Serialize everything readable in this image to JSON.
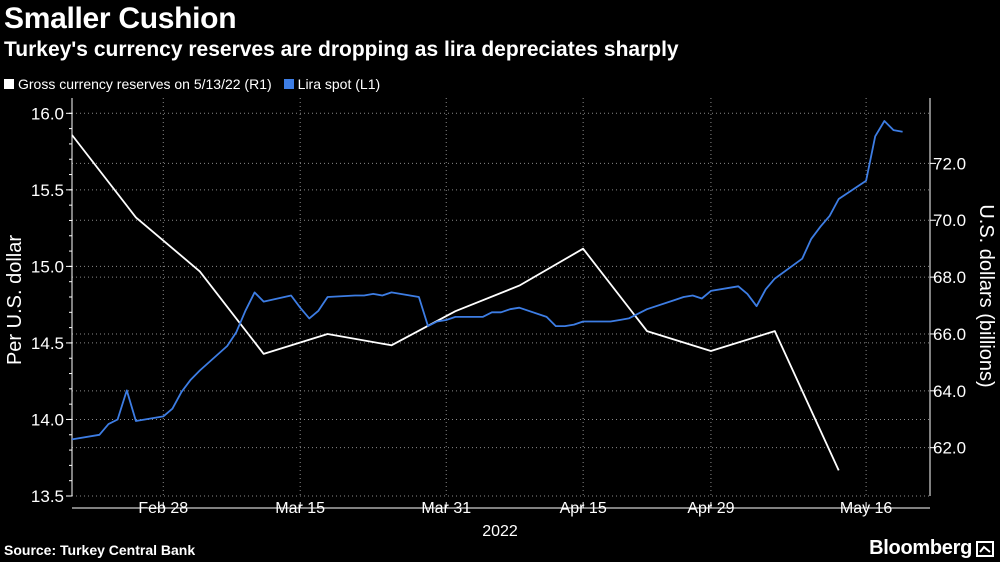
{
  "header": {
    "title": "Smaller Cushion",
    "subtitle": "Turkey's currency reserves are dropping as lira depreciates sharply"
  },
  "footer": {
    "source": "Source: Turkey Central Bank",
    "brand": "Bloomberg"
  },
  "colors": {
    "background": "#000000",
    "reserves_line": "#ffffff",
    "lira_line": "#3d7de4",
    "grid": "#8a8a8a"
  },
  "icons": {
    "brand_mark": "trading-terminal-icon"
  },
  "chart_data": {
    "type": "line",
    "legend": [
      {
        "label": "Gross currency reserves on 5/13/22 (R1)",
        "color": "#ffffff"
      },
      {
        "label": "Lira spot (L1)",
        "color": "#3d7de4"
      }
    ],
    "legend_position": "top-left",
    "grid": true,
    "x_axis": {
      "tick_labels": [
        "Feb 28",
        "Mar 15",
        "Mar 31",
        "Apr 15",
        "Apr 29",
        "May 16"
      ],
      "tick_dates": [
        "2022-02-28",
        "2022-03-15",
        "2022-03-31",
        "2022-04-15",
        "2022-04-29",
        "2022-05-16"
      ],
      "year_label": "2022",
      "range": [
        "2022-02-18",
        "2022-05-23"
      ]
    },
    "y_left": {
      "label": "Per U.S. dollar",
      "range": [
        13.5,
        16.1
      ],
      "tick_labels": [
        "16.0",
        "15.5",
        "15.0",
        "14.5",
        "14.0",
        "13.5"
      ],
      "ticks": [
        16.0,
        15.5,
        15.0,
        14.5,
        14.0,
        13.5
      ]
    },
    "y_right": {
      "label": "U.S. dollars (billions)",
      "range": [
        60.3,
        74.3
      ],
      "tick_labels": [
        "72.0",
        "70.0",
        "68.0",
        "66.0",
        "64.0",
        "62.0"
      ],
      "ticks": [
        72.0,
        70.0,
        68.0,
        66.0,
        64.0,
        62.0
      ]
    },
    "series": [
      {
        "name": "Gross currency reserves on 5/13/22 (R1)",
        "axis": "right",
        "color": "#ffffff",
        "points": [
          [
            "2022-02-18",
            73.0
          ],
          [
            "2022-02-25",
            70.1
          ],
          [
            "2022-03-04",
            68.2
          ],
          [
            "2022-03-11",
            65.3
          ],
          [
            "2022-03-18",
            66.0
          ],
          [
            "2022-03-25",
            65.6
          ],
          [
            "2022-04-01",
            66.8
          ],
          [
            "2022-04-08",
            67.7
          ],
          [
            "2022-04-15",
            69.0
          ],
          [
            "2022-04-22",
            66.1
          ],
          [
            "2022-04-29",
            65.4
          ],
          [
            "2022-05-06",
            66.1
          ],
          [
            "2022-05-13",
            61.2
          ]
        ]
      },
      {
        "name": "Lira spot (L1)",
        "axis": "left",
        "color": "#3d7de4",
        "points": [
          [
            "2022-02-18",
            13.87
          ],
          [
            "2022-02-21",
            13.9
          ],
          [
            "2022-02-22",
            13.97
          ],
          [
            "2022-02-23",
            14.0
          ],
          [
            "2022-02-24",
            14.19
          ],
          [
            "2022-02-25",
            13.99
          ],
          [
            "2022-02-28",
            14.02
          ],
          [
            "2022-03-01",
            14.07
          ],
          [
            "2022-03-02",
            14.18
          ],
          [
            "2022-03-03",
            14.26
          ],
          [
            "2022-03-04",
            14.32
          ],
          [
            "2022-03-07",
            14.48
          ],
          [
            "2022-03-08",
            14.57
          ],
          [
            "2022-03-09",
            14.71
          ],
          [
            "2022-03-10",
            14.83
          ],
          [
            "2022-03-11",
            14.77
          ],
          [
            "2022-03-14",
            14.81
          ],
          [
            "2022-03-15",
            14.73
          ],
          [
            "2022-03-16",
            14.66
          ],
          [
            "2022-03-17",
            14.71
          ],
          [
            "2022-03-18",
            14.8
          ],
          [
            "2022-03-21",
            14.81
          ],
          [
            "2022-03-22",
            14.81
          ],
          [
            "2022-03-23",
            14.82
          ],
          [
            "2022-03-24",
            14.81
          ],
          [
            "2022-03-25",
            14.83
          ],
          [
            "2022-03-28",
            14.8
          ],
          [
            "2022-03-29",
            14.61
          ],
          [
            "2022-03-30",
            14.64
          ],
          [
            "2022-03-31",
            14.65
          ],
          [
            "2022-04-01",
            14.67
          ],
          [
            "2022-04-04",
            14.67
          ],
          [
            "2022-04-05",
            14.7
          ],
          [
            "2022-04-06",
            14.7
          ],
          [
            "2022-04-07",
            14.72
          ],
          [
            "2022-04-08",
            14.73
          ],
          [
            "2022-04-11",
            14.67
          ],
          [
            "2022-04-12",
            14.61
          ],
          [
            "2022-04-13",
            14.61
          ],
          [
            "2022-04-14",
            14.62
          ],
          [
            "2022-04-15",
            14.64
          ],
          [
            "2022-04-18",
            14.64
          ],
          [
            "2022-04-19",
            14.65
          ],
          [
            "2022-04-20",
            14.66
          ],
          [
            "2022-04-21",
            14.69
          ],
          [
            "2022-04-22",
            14.72
          ],
          [
            "2022-04-25",
            14.78
          ],
          [
            "2022-04-26",
            14.8
          ],
          [
            "2022-04-27",
            14.81
          ],
          [
            "2022-04-28",
            14.79
          ],
          [
            "2022-04-29",
            14.84
          ],
          [
            "2022-05-02",
            14.87
          ],
          [
            "2022-05-03",
            14.82
          ],
          [
            "2022-05-04",
            14.74
          ],
          [
            "2022-05-05",
            14.85
          ],
          [
            "2022-05-06",
            14.92
          ],
          [
            "2022-05-09",
            15.05
          ],
          [
            "2022-05-10",
            15.18
          ],
          [
            "2022-05-11",
            15.26
          ],
          [
            "2022-05-12",
            15.33
          ],
          [
            "2022-05-13",
            15.44
          ],
          [
            "2022-05-16",
            15.56
          ],
          [
            "2022-05-17",
            15.85
          ],
          [
            "2022-05-18",
            15.95
          ],
          [
            "2022-05-19",
            15.89
          ],
          [
            "2022-05-20",
            15.88
          ]
        ]
      }
    ]
  }
}
